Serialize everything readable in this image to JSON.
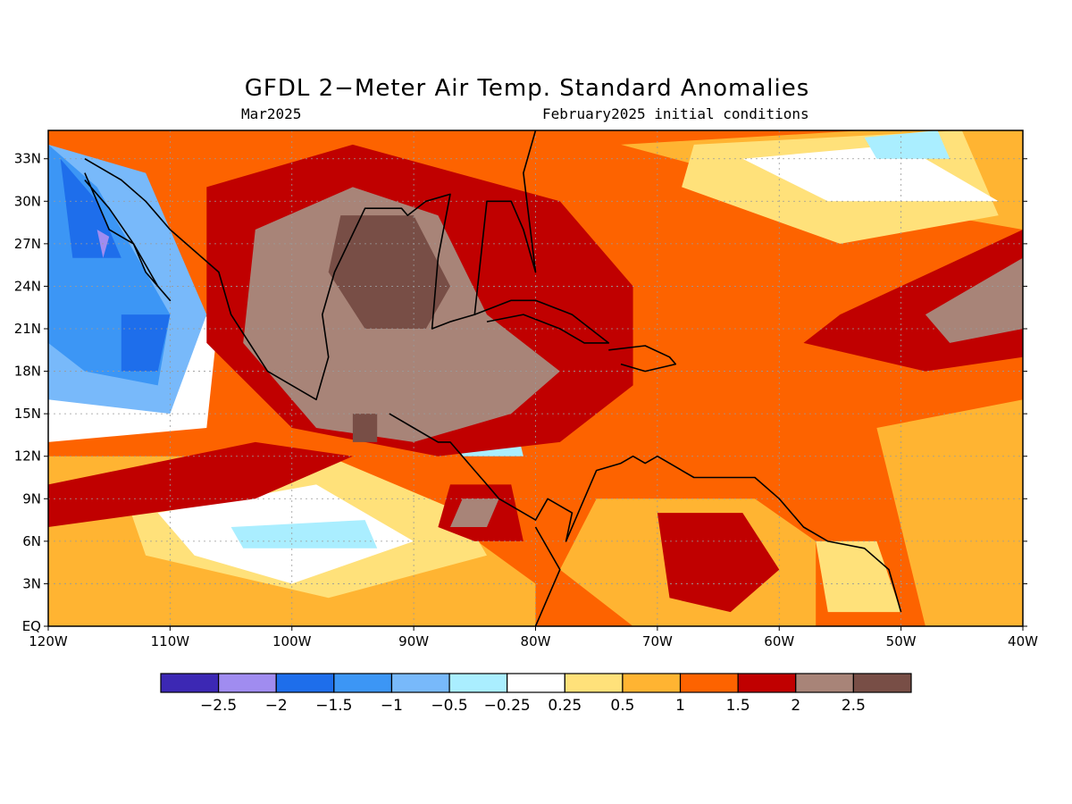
{
  "title": "GFDL 2−Meter Air Temp. Standard Anomalies",
  "subtitle_left": "Mar2025",
  "subtitle_right": "February2025 initial conditions",
  "map": {
    "lon_range": [
      -120,
      -40
    ],
    "lat_range": [
      0,
      35
    ],
    "lat_ticks": [
      {
        "value": 33,
        "label": "33N"
      },
      {
        "value": 30,
        "label": "30N"
      },
      {
        "value": 27,
        "label": "27N"
      },
      {
        "value": 24,
        "label": "24N"
      },
      {
        "value": 21,
        "label": "21N"
      },
      {
        "value": 18,
        "label": "18N"
      },
      {
        "value": 15,
        "label": "15N"
      },
      {
        "value": 12,
        "label": "12N"
      },
      {
        "value": 9,
        "label": "9N"
      },
      {
        "value": 6,
        "label": "6N"
      },
      {
        "value": 3,
        "label": "3N"
      },
      {
        "value": 0,
        "label": "EQ"
      }
    ],
    "lon_ticks": [
      {
        "value": -120,
        "label": "120W"
      },
      {
        "value": -110,
        "label": "110W"
      },
      {
        "value": -100,
        "label": "100W"
      },
      {
        "value": -90,
        "label": "90W"
      },
      {
        "value": -80,
        "label": "80W"
      },
      {
        "value": -70,
        "label": "70W"
      },
      {
        "value": -60,
        "label": "60W"
      },
      {
        "value": -50,
        "label": "50W"
      },
      {
        "value": -40,
        "label": "40W"
      }
    ],
    "base_color": "#fd6300",
    "regions": [
      {
        "level": "0.5-1",
        "color": "#ffb432",
        "lons": [
          -120,
          -100,
          -88,
          -80,
          -80,
          -105,
          -120
        ],
        "lats": [
          12,
          12,
          8,
          3,
          0,
          0,
          0
        ]
      },
      {
        "level": "0.5-1",
        "color": "#ffb432",
        "lons": [
          -75,
          -62,
          -57,
          -57,
          -72,
          -78
        ],
        "lats": [
          9,
          9,
          6,
          0,
          0,
          4
        ]
      },
      {
        "level": "0.5-1",
        "color": "#ffb432",
        "lons": [
          -73,
          -53,
          -40,
          -40,
          -60
        ],
        "lats": [
          34,
          35,
          35,
          28,
          31
        ]
      },
      {
        "level": "0.5-1",
        "color": "#ffb432",
        "lons": [
          -52,
          -40,
          -40,
          -48
        ],
        "lats": [
          14,
          16,
          0,
          0
        ]
      },
      {
        "level": "0.25-0.5",
        "color": "#ffe17a",
        "lons": [
          -114,
          -97,
          -86,
          -84,
          -97,
          -112
        ],
        "lats": [
          10,
          12,
          8,
          5,
          2,
          5
        ]
      },
      {
        "level": "0.25-0.5",
        "color": "#ffe17a",
        "lons": [
          -67,
          -45,
          -42,
          -55,
          -68
        ],
        "lats": [
          34,
          35,
          29,
          27,
          31
        ]
      },
      {
        "level": "0.25-0.5",
        "color": "#ffe17a",
        "lons": [
          -57,
          -52,
          -50,
          -56
        ],
        "lats": [
          6,
          6,
          1,
          1
        ]
      },
      {
        "level": "-0.25-0.25",
        "color": "#ffffff",
        "lons": [
          -111,
          -98,
          -90,
          -100,
          -108
        ],
        "lats": [
          8,
          10,
          6,
          3,
          5
        ]
      },
      {
        "level": "-0.25-0.25",
        "color": "#ffffff",
        "lons": [
          -63,
          -50,
          -42,
          -56
        ],
        "lats": [
          33,
          34,
          30,
          30
        ]
      },
      {
        "level": "-0.25-0.25",
        "color": "#ffffff",
        "lons": [
          -120,
          -106,
          -107,
          -120
        ],
        "lats": [
          20,
          22,
          14,
          13
        ]
      },
      {
        "level": "-0.5-0.25",
        "color": "#aaeeff",
        "lons": [
          -105,
          -94,
          -93,
          -104
        ],
        "lats": [
          7,
          7.5,
          5.5,
          5.5
        ]
      },
      {
        "level": "-0.5-0.25",
        "color": "#aaeeff",
        "lons": [
          -53,
          -47,
          -46,
          -52
        ],
        "lats": [
          34.5,
          35,
          33,
          33
        ]
      },
      {
        "level": "-0.5-0.25",
        "color": "#aaeeff",
        "lons": [
          -87,
          -82,
          -81,
          -86
        ],
        "lats": [
          14.5,
          15.5,
          12,
          12
        ]
      },
      {
        "level": "-1--0.5",
        "color": "#78b9fa",
        "lons": [
          -120,
          -112,
          -107,
          -110,
          -120
        ],
        "lats": [
          34,
          32,
          22,
          15,
          16
        ]
      },
      {
        "level": "-1.5--1",
        "color": "#3c96f5",
        "lons": [
          -120,
          -116,
          -110,
          -111,
          -117,
          -120
        ],
        "lats": [
          34,
          31,
          22,
          17,
          18,
          20
        ]
      },
      {
        "level": "-2--1.5",
        "color": "#1e6eeb",
        "lons": [
          -119,
          -116,
          -114,
          -118
        ],
        "lats": [
          33,
          30,
          26,
          26
        ]
      },
      {
        "level": "-2--1.5",
        "color": "#1e6eeb",
        "lons": [
          -114,
          -110,
          -111,
          -114
        ],
        "lats": [
          22,
          22,
          18,
          18
        ]
      },
      {
        "level": "-2.5--2",
        "color": "#a08cf0",
        "lons": [
          -116,
          -115,
          -115.5
        ],
        "lats": [
          28,
          27.5,
          26
        ]
      },
      {
        "level": "1.5-2",
        "color": "#c00000",
        "lons": [
          -107,
          -95,
          -78,
          -72,
          -72,
          -78,
          -88,
          -100,
          -107
        ],
        "lats": [
          31,
          34,
          30,
          24,
          17,
          13,
          12,
          14,
          20
        ]
      },
      {
        "level": "1.5-2",
        "color": "#c00000",
        "lons": [
          -120,
          -103,
          -95,
          -103,
          -120
        ],
        "lats": [
          10,
          13,
          12,
          9,
          7
        ]
      },
      {
        "level": "1.5-2",
        "color": "#c00000",
        "lons": [
          -55,
          -40,
          -40,
          -48,
          -58
        ],
        "lats": [
          22,
          28,
          19,
          18,
          20
        ]
      },
      {
        "level": "1.5-2",
        "color": "#c00000",
        "lons": [
          -87,
          -82,
          -81,
          -85,
          -88
        ],
        "lats": [
          10,
          10,
          6,
          6,
          7
        ]
      },
      {
        "level": "1.5-2",
        "color": "#c00000",
        "lons": [
          -70,
          -63,
          -60,
          -64,
          -69
        ],
        "lats": [
          8,
          8,
          4,
          1,
          2
        ]
      },
      {
        "level": "2-2.5",
        "color": "#a88478",
        "lons": [
          -103,
          -95,
          -88,
          -84,
          -78,
          -82,
          -90,
          -98,
          -104
        ],
        "lats": [
          28,
          31,
          29,
          22,
          18,
          15,
          13,
          14,
          20
        ]
      },
      {
        "level": "2-2.5",
        "color": "#a88478",
        "lons": [
          -48,
          -40,
          -40,
          -46
        ],
        "lats": [
          22,
          26,
          21,
          20
        ]
      },
      {
        "level": "2-2.5",
        "color": "#a88478",
        "lons": [
          -86,
          -83,
          -84,
          -87
        ],
        "lats": [
          9,
          9,
          7,
          7
        ]
      },
      {
        "level": "2.5+",
        "color": "#784e46",
        "lons": [
          -96,
          -90,
          -87,
          -89,
          -94,
          -97
        ],
        "lats": [
          29,
          29,
          24,
          21,
          21,
          25
        ]
      },
      {
        "level": "2.5+",
        "color": "#784e46",
        "lons": [
          -95,
          -93,
          -93,
          -95
        ],
        "lats": [
          15,
          15,
          13,
          13
        ]
      }
    ],
    "coastlines": [
      {
        "name": "north-america-gulf-coast",
        "lons": [
          -117,
          -114,
          -112,
          -110,
          -106,
          -105,
          -102,
          -98,
          -97,
          -97.5,
          -96.5,
          -94,
          -91,
          -90.5,
          -89,
          -87,
          -88,
          -88.5,
          -87,
          -85,
          -84,
          -82,
          -81,
          -80,
          -81,
          -80
        ],
        "lats": [
          33,
          31.5,
          30,
          28,
          25,
          22,
          18,
          16,
          19,
          22,
          25,
          29.5,
          29.5,
          29,
          30,
          30.5,
          26,
          21,
          21.5,
          22,
          30,
          30,
          28,
          25,
          32,
          35
        ]
      },
      {
        "name": "baja-california",
        "lons": [
          -117,
          -116,
          -115,
          -113,
          -111,
          -110,
          -112,
          -113,
          -115,
          -117
        ],
        "lats": [
          32,
          30,
          28,
          27,
          24,
          23,
          25,
          27,
          29.5,
          31.5
        ]
      },
      {
        "name": "central-america",
        "lons": [
          -92,
          -90,
          -88,
          -87,
          -85,
          -84,
          -83,
          -82,
          -80,
          -79,
          -77,
          -77.5,
          -75,
          -73,
          -72,
          -71,
          -70,
          -67,
          -65,
          -62,
          -60,
          -58,
          -56,
          -53,
          -51,
          -50
        ],
        "lats": [
          15,
          14,
          13,
          13,
          11,
          10,
          9,
          8.5,
          7.5,
          9,
          8,
          6,
          11,
          11.5,
          12,
          11.5,
          12,
          10.5,
          10.5,
          10.5,
          9,
          7,
          6,
          5.5,
          4,
          1
        ]
      },
      {
        "name": "cuba",
        "lons": [
          -85,
          -82,
          -80,
          -77,
          -74,
          -76,
          -78,
          -81,
          -84
        ],
        "lats": [
          22,
          23,
          23,
          22,
          20,
          20,
          21,
          22,
          21.5
        ]
      },
      {
        "name": "hispaniola",
        "lons": [
          -74,
          -71,
          -69,
          -68.5,
          -71,
          -73
        ],
        "lats": [
          19.5,
          19.8,
          19,
          18.5,
          18,
          18.5
        ]
      },
      {
        "name": "south-america-pacific",
        "lons": [
          -80,
          -79,
          -78,
          -80
        ],
        "lats": [
          0,
          2,
          4,
          7
        ]
      }
    ]
  },
  "colorbar": {
    "colors": [
      "#3c28b4",
      "#a08cf0",
      "#1e6eeb",
      "#3c96f5",
      "#78b9fa",
      "#aaeeff",
      "#ffffff",
      "#ffe17a",
      "#ffb432",
      "#fd6300",
      "#c00000",
      "#a88478",
      "#784e46"
    ],
    "labels": [
      "−2.5",
      "−2",
      "−1.5",
      "−1",
      "−0.5",
      "−0.25",
      "0.25",
      "0.5",
      "1",
      "1.5",
      "2",
      "2.5"
    ]
  }
}
